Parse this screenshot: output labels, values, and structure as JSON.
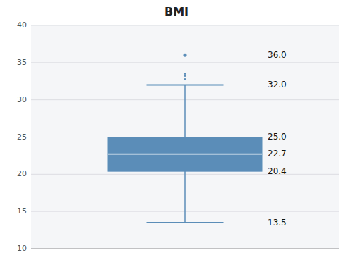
{
  "chart_data": {
    "type": "box",
    "title": "BMI",
    "ylim": [
      10,
      40
    ],
    "yticks": [
      10,
      15,
      20,
      25,
      30,
      35,
      40
    ],
    "grid": true,
    "tick_labels": "y",
    "color": "#5b8db8",
    "data_labels": true,
    "whisker_min": 13.5,
    "q1": 20.4,
    "median": 22.7,
    "q3": 25.0,
    "whisker_max": 32.0,
    "outliers": [
      36.0
    ],
    "extra_points": [
      33.5,
      33.2,
      32.8
    ],
    "value_labels": {
      "q3": "25.0",
      "median": "22.7",
      "q1": "20.4",
      "whisker_min": "13.5",
      "whisker_max": "32.0",
      "outliers": [
        "36.0"
      ]
    }
  }
}
